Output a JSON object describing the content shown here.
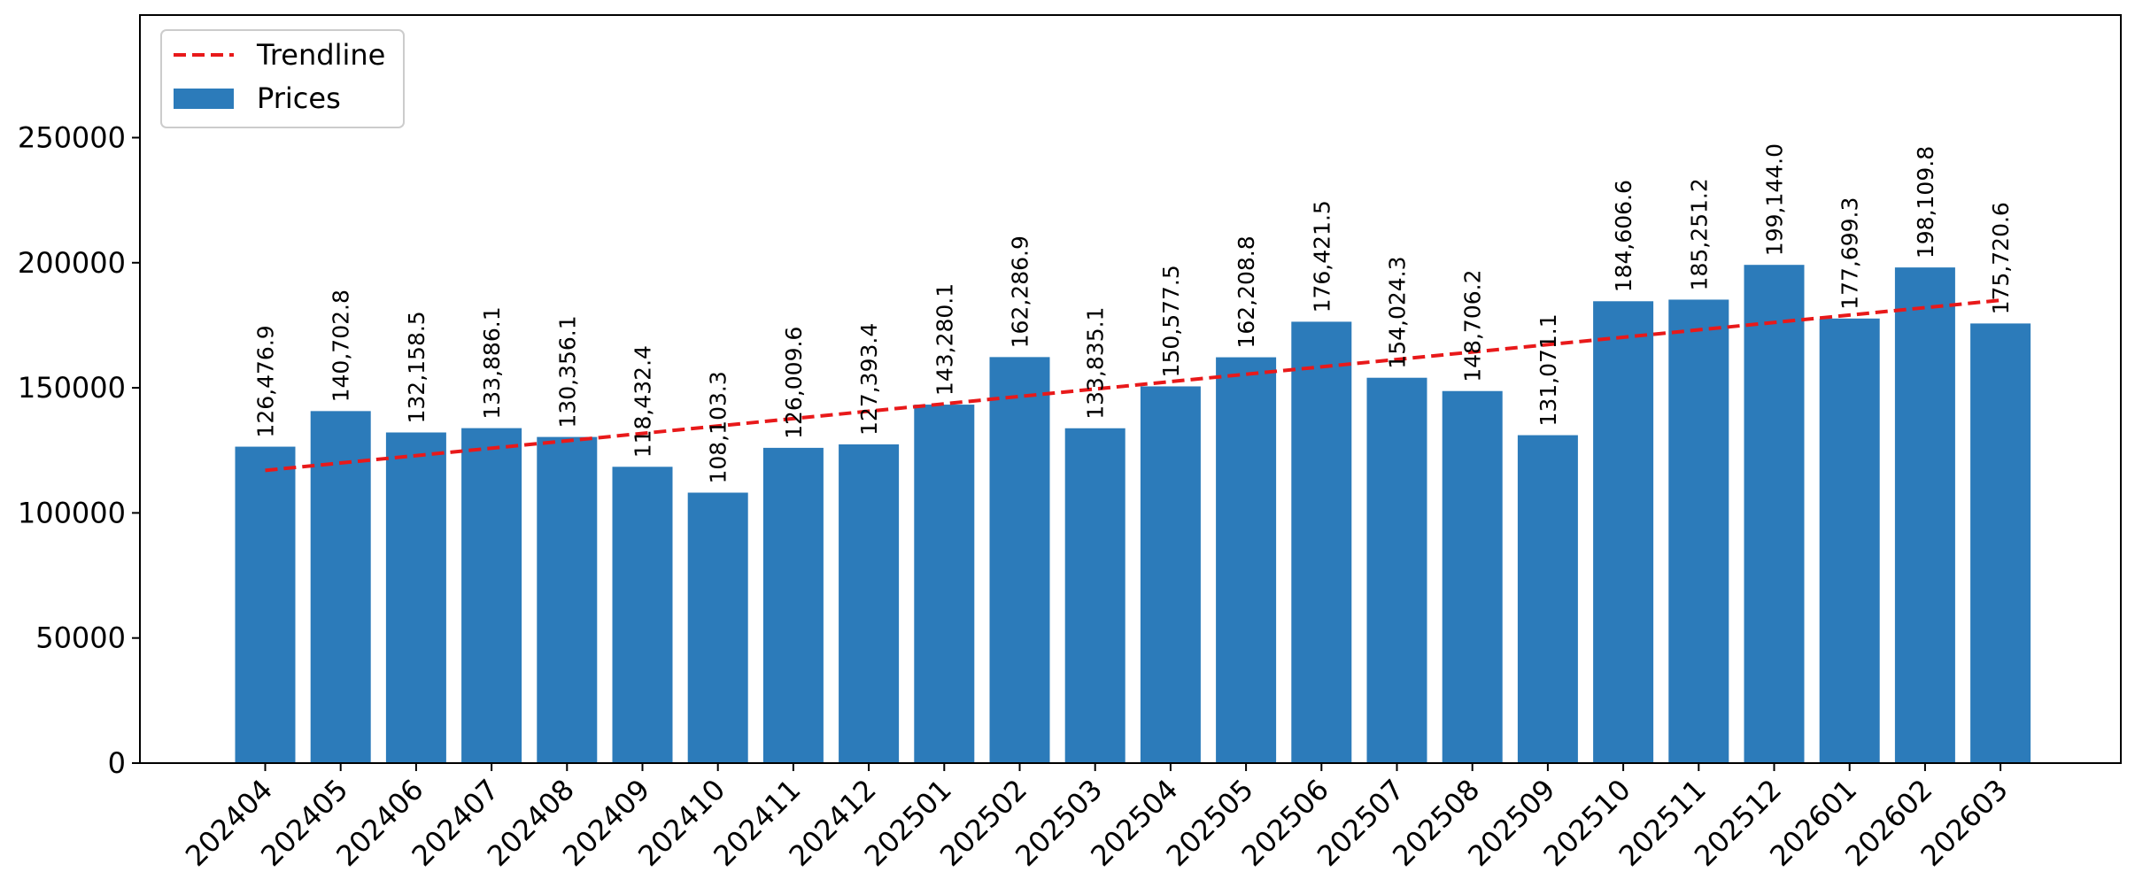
{
  "chart_data": {
    "type": "bar",
    "title": "",
    "xlabel": "",
    "ylabel": "",
    "categories": [
      "202404",
      "202405",
      "202406",
      "202407",
      "202408",
      "202409",
      "202410",
      "202411",
      "202412",
      "202501",
      "202502",
      "202503",
      "202504",
      "202505",
      "202506",
      "202507",
      "202508",
      "202509",
      "202510",
      "202511",
      "202512",
      "202601",
      "202602",
      "202603"
    ],
    "series": [
      {
        "name": "Prices",
        "type": "bar",
        "color": "#2c7bba",
        "values": [
          126476.9,
          140702.8,
          132158.5,
          133886.1,
          130356.1,
          118432.4,
          108103.3,
          126009.6,
          127393.4,
          143280.1,
          162286.9,
          133835.1,
          150577.5,
          162208.8,
          176421.5,
          154024.3,
          148706.2,
          131071.1,
          184606.6,
          185251.2,
          199144.0,
          177699.3,
          198109.8,
          175720.6
        ],
        "labels": [
          "126,476.9",
          "140,702.8",
          "132,158.5",
          "133,886.1",
          "130,356.1",
          "118,432.4",
          "108,103.3",
          "126,009.6",
          "127,393.4",
          "143,280.1",
          "162,286.9",
          "133,835.1",
          "150,577.5",
          "162,208.8",
          "176,421.5",
          "154,024.3",
          "148,706.2",
          "131,071.1",
          "184,606.6",
          "185,251.2",
          "199,144.0",
          "177,699.3",
          "198,109.8",
          "175,720.6"
        ]
      },
      {
        "name": "Trendline",
        "type": "line",
        "style": "dashed",
        "color": "#e8191a",
        "start": 117000,
        "end": 185000
      }
    ],
    "ylim": [
      0,
      299000
    ],
    "yticks": [
      "0",
      "50000",
      "100000",
      "150000",
      "200000",
      "250000"
    ],
    "ytick_values": [
      0,
      50000,
      100000,
      150000,
      200000,
      250000
    ],
    "legend": {
      "position": "top-left",
      "entries": [
        "Trendline",
        "Prices"
      ]
    },
    "grid": false
  }
}
